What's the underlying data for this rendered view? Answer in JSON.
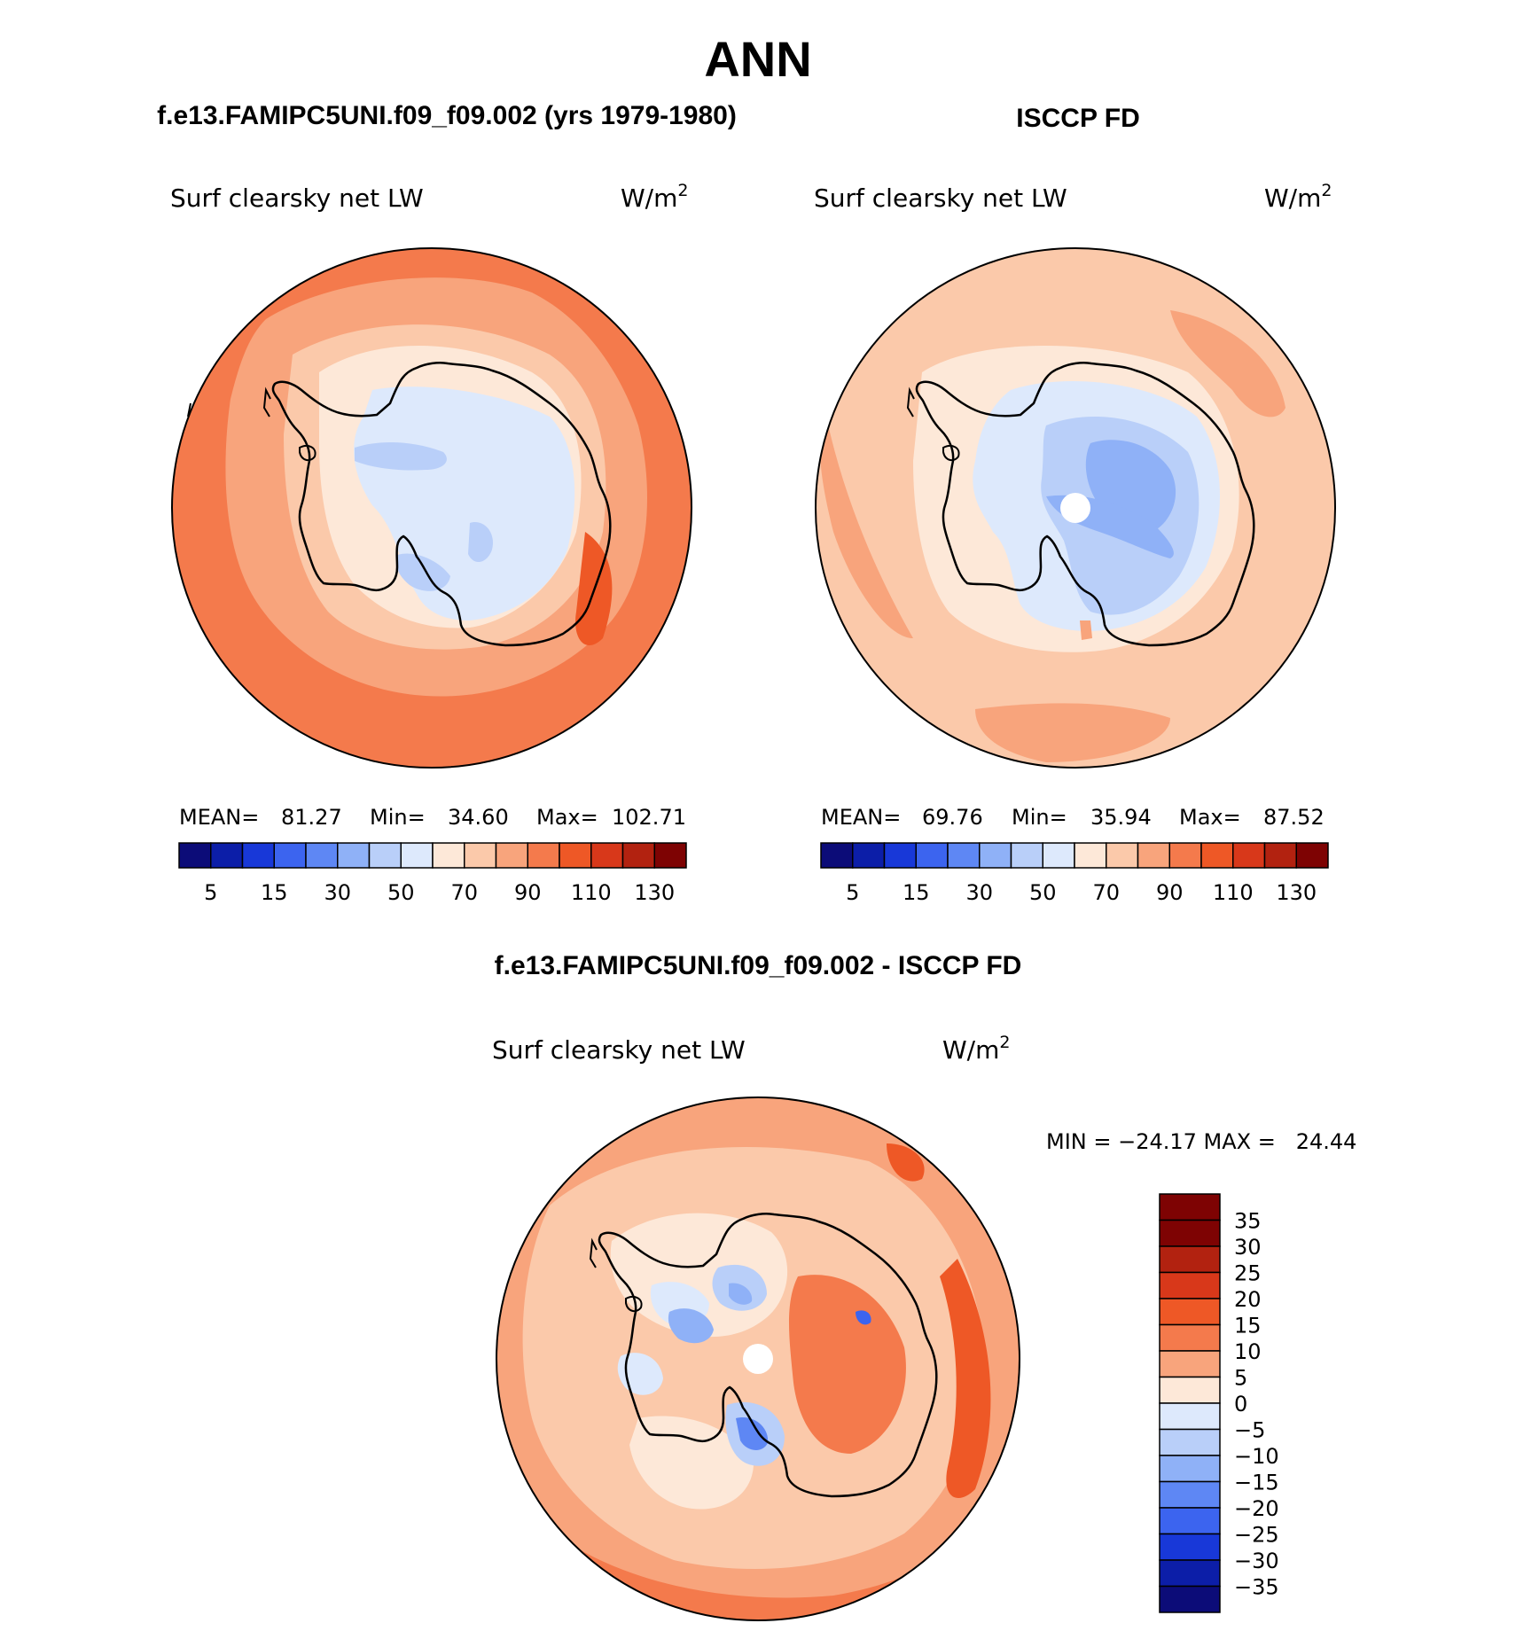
{
  "page_title": "ANN",
  "colors": {
    "outline": "#000000",
    "background": "#ffffff",
    "abs_scale": [
      "#0c0c78",
      "#0c1ea8",
      "#1838d8",
      "#3c64ef",
      "#5e87f4",
      "#8fb1f7",
      "#b9cff9",
      "#dde9fc",
      "#fde8d8",
      "#fbc9aa",
      "#f8a47c",
      "#f47a4c",
      "#ee5826",
      "#d8381a",
      "#b22210",
      "#7e0303"
    ],
    "diff_scale": [
      "#7e0303",
      "#b22210",
      "#d8381a",
      "#ee5826",
      "#f47a4c",
      "#f8a47c",
      "#fde8d8",
      "#dde9fc",
      "#b9cff9",
      "#8fb1f7",
      "#5e87f4",
      "#3c64ef",
      "#1838d8",
      "#0c1ea8",
      "#0c0c78"
    ]
  },
  "panels": [
    {
      "title": "f.e13.FAMIPC5UNI.f09_f09.002 (yrs 1979-1980)",
      "variable": "Surf clearsky net LW",
      "units": "W/m",
      "units_sup": "2",
      "mean_label": "MEAN=",
      "mean": "81.27",
      "min_label": "Min=",
      "min": "34.60",
      "max_label": "Max=",
      "max": "102.71",
      "colorbar_labels": [
        "5",
        "15",
        "30",
        "50",
        "70",
        "90",
        "110",
        "130"
      ]
    },
    {
      "title": "ISCCP FD",
      "variable": "Surf clearsky net LW",
      "units": "W/m",
      "units_sup": "2",
      "mean_label": "MEAN=",
      "mean": "69.76",
      "min_label": "Min=",
      "min": "35.94",
      "max_label": "Max=",
      "max": "87.52",
      "colorbar_labels": [
        "5",
        "15",
        "30",
        "50",
        "70",
        "90",
        "110",
        "130"
      ]
    }
  ],
  "diff_panel": {
    "title": "f.e13.FAMIPC5UNI.f09_f09.002 - ISCCP FD",
    "variable": "Surf clearsky net LW",
    "units": "W/m",
    "units_sup": "2",
    "minmax_text": "MIN = −24.17 MAX =   24.44",
    "colorbar_labels": [
      "35",
      "30",
      "25",
      "20",
      "15",
      "10",
      "5",
      "0",
      "−5",
      "−10",
      "−15",
      "−20",
      "−25",
      "−30",
      "−35"
    ]
  }
}
